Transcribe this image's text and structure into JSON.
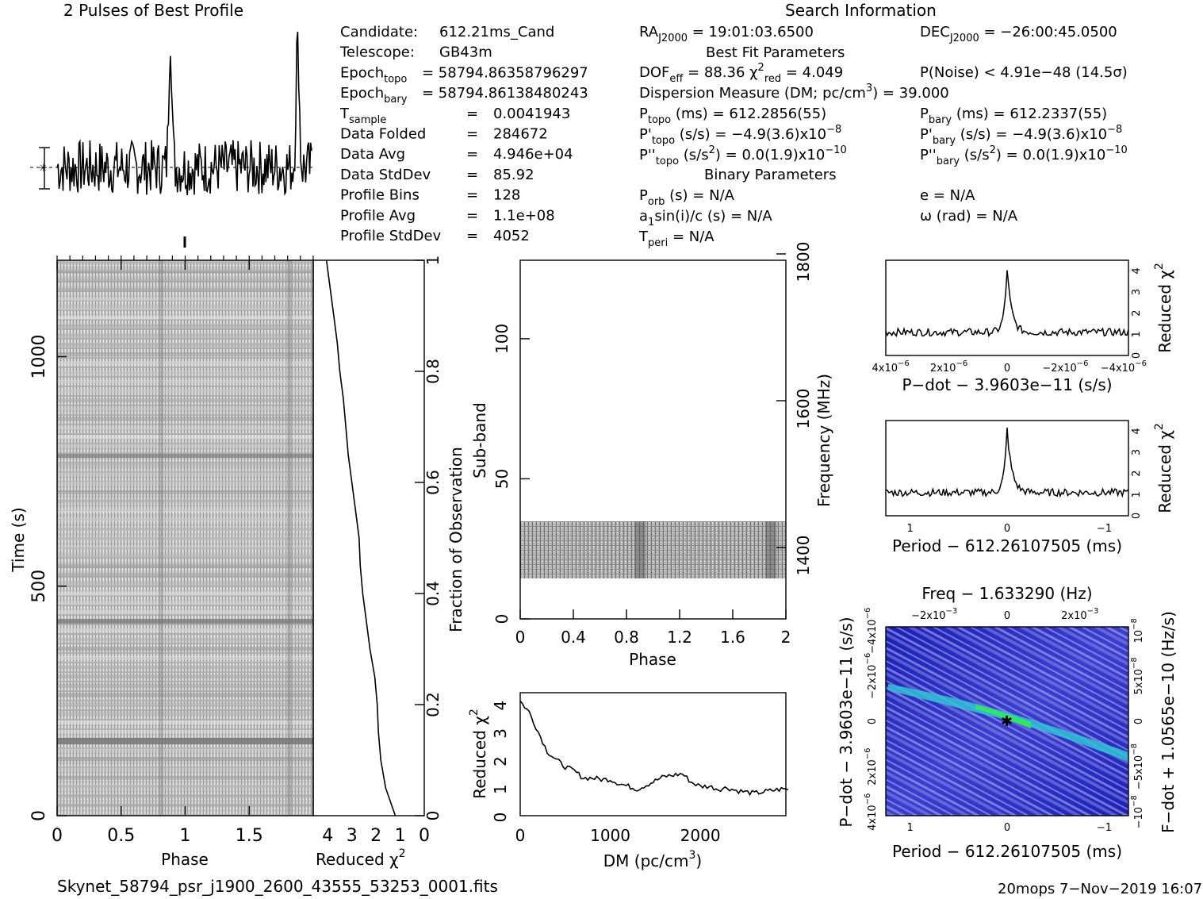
{
  "header": {
    "profile_title": "2 Pulses of Best Profile",
    "search_title": "Search Information",
    "best_fit_title": "Best Fit Parameters",
    "binary_title": "Binary Parameters"
  },
  "info_left": [
    {
      "label": "Candidate:",
      "value": "612.21ms_Cand"
    },
    {
      "label": "Telescope:",
      "value": "GB43m"
    },
    {
      "label": "Epoch_topo",
      "value": "= 58794.86358796297"
    },
    {
      "label": "Epoch_bary",
      "value": "= 58794.86138480243"
    },
    {
      "label": "T_sample",
      "value": "0.0041943"
    },
    {
      "label": "Data Folded",
      "value": "284672"
    },
    {
      "label": "Data Avg",
      "value": "4.946e+04"
    },
    {
      "label": "Data StdDev",
      "value": "85.92"
    },
    {
      "label": "Profile Bins",
      "value": "128"
    },
    {
      "label": "Profile Avg",
      "value": "1.1e+08"
    },
    {
      "label": "Profile StdDev",
      "value": "4052"
    }
  ],
  "search_info": {
    "ra": "19:01:03.6500",
    "dec": "−26:00:45.0500",
    "dof_eff": "88.36",
    "chi2_red": "4.049",
    "p_noise": "P(Noise) < 4.91e−48   (14.5σ)",
    "dm_line": "Dispersion Measure (DM; pc/cm",
    "dm_value": ") = 39.000",
    "p_topo": "612.2856(55)",
    "p_bary": "612.2337(55)",
    "pd_topo": "−4.9(3.6)x10",
    "pd_topo_exp": "−8",
    "pd_bary": "−4.9(3.6)x10",
    "pd_bary_exp": "−8",
    "pdd_topo": "0.0(1.9)x10",
    "pdd_topo_exp": "−10",
    "pdd_bary": "0.0(1.9)x10",
    "pdd_bary_exp": "−10",
    "p_orb": "= N/A",
    "a1sini": "= N/A",
    "t_peri": "= N/A",
    "ecc": "e = N/A",
    "omega": "ω (rad) = N/A"
  },
  "footer": {
    "filename": "Skynet_58794_psr_j1900_2600_43555_53253_0001.fits",
    "stamp": "20mops  7−Nov−2019 16:07"
  },
  "chart_data": [
    {
      "type": "line",
      "title": "2 Pulses of Best Profile",
      "x_range": [
        0,
        2
      ],
      "peaks_phase": [
        0.89,
        1.89
      ],
      "note_values": "two pulses, each peak at phase ~0.89 and ~1.89"
    },
    {
      "type": "heatmap",
      "name": "time-phase",
      "xlabel": "Phase",
      "ylabel": "Time (s)",
      "xlim": [
        0,
        2
      ],
      "ylim": [
        0,
        1200
      ],
      "x_ticks": [
        "0",
        "0.5",
        "1",
        "1.5"
      ],
      "y_ticks": [
        "0",
        "500",
        "1000"
      ]
    },
    {
      "type": "line",
      "name": "chi2-vs-time",
      "xlabel": "Reduced χ",
      "ylabel": "Fraction of Observation",
      "x_ticks": [
        "4",
        "3",
        "2",
        "1",
        "0"
      ],
      "y_ticks": [
        "0",
        "0.2",
        "0.4",
        "0.6",
        "0.8",
        "1"
      ],
      "fraction": [
        0,
        0.05,
        0.1,
        0.15,
        0.2,
        0.25,
        0.3,
        0.35,
        0.4,
        0.45,
        0.5,
        0.55,
        0.6,
        0.65,
        0.7,
        0.75,
        0.8,
        0.85,
        0.9,
        0.95,
        1.0
      ],
      "chi2": [
        1.2,
        1.6,
        1.8,
        1.9,
        1.95,
        2.05,
        2.25,
        2.4,
        2.55,
        2.65,
        2.7,
        2.85,
        3.0,
        3.15,
        3.25,
        3.35,
        3.5,
        3.6,
        3.75,
        3.9,
        4.05
      ]
    },
    {
      "type": "heatmap",
      "name": "subband-phase",
      "xlabel": "Phase",
      "ylabel": "Sub-band",
      "ylabel_right": "Frequency (MHz)",
      "xlim": [
        0,
        2
      ],
      "ylim": [
        0,
        128
      ],
      "x_ticks": [
        "0",
        "0.4",
        "0.8",
        "1.2",
        "1.6",
        "2"
      ],
      "y_ticks": [
        "0",
        "50",
        "100"
      ],
      "y_ticks_right": [
        "1400",
        "1600",
        "1800"
      ],
      "active_subbands": [
        14,
        35
      ]
    },
    {
      "type": "line",
      "name": "chi2-vs-dm",
      "xlabel": "DM (pc/cm",
      "ylabel": "Reduced χ",
      "x_ticks": [
        "0",
        "1000",
        "2000"
      ],
      "y_ticks": [
        "0",
        "1",
        "2",
        "3",
        "4"
      ],
      "x": [
        0,
        100,
        200,
        300,
        400,
        500,
        600,
        700,
        800,
        900,
        1000,
        1100,
        1200,
        1300,
        1400,
        1500,
        1600,
        1700,
        1800,
        1900,
        2000,
        2100,
        2200,
        2300,
        2400,
        2500,
        2600,
        2700,
        2800,
        2900
      ],
      "y": [
        4.1,
        3.7,
        3.0,
        2.3,
        2.0,
        1.75,
        1.6,
        1.35,
        1.35,
        1.3,
        1.3,
        1.15,
        1.05,
        0.95,
        1.1,
        1.25,
        1.4,
        1.45,
        1.5,
        1.2,
        1.05,
        1.05,
        0.95,
        1.0,
        0.9,
        0.85,
        0.8,
        0.85,
        0.9,
        0.95
      ]
    },
    {
      "type": "line",
      "name": "chi2-vs-pdot",
      "xlabel": "P−dot − 3.9603e−11 (s/s)",
      "ylabel": "Reduced χ",
      "x_ticks": [
        "4x10",
        "2x10",
        "0",
        "−2x10",
        "−4x10"
      ],
      "x_tick_exp": "−6",
      "y_ticks": [
        "0",
        "1",
        "2",
        "3",
        "4"
      ],
      "peak": 4.1,
      "baseline": 1.1
    },
    {
      "type": "line",
      "name": "chi2-vs-period",
      "xlabel": "Period − 612.26107505 (ms)",
      "ylabel": "Reduced χ",
      "x_ticks": [
        "1",
        "0",
        "−1"
      ],
      "y_ticks": [
        "0",
        "1",
        "2",
        "3",
        "4"
      ],
      "peak": 4.1,
      "baseline": 1.1
    },
    {
      "type": "heatmap",
      "name": "p-pdot",
      "title": "Freq − 1.633290 (Hz)",
      "xlabel": "Period − 612.26107505 (ms)",
      "ylabel": "P−dot − 3.9603e−11 (s/s)",
      "ylabel_right": "F−dot + 1.0565e−10 (Hz/s)",
      "x_ticks": [
        "1",
        "0",
        "−1"
      ],
      "top_ticks": [
        "−2x10",
        "0",
        "2x10"
      ],
      "top_tick_exp": "−3",
      "left_ticks": [
        "4x10",
        "2x10",
        "0",
        "−2x10",
        "−4x10"
      ],
      "left_tick_exp": "−6",
      "right_ticks": [
        "−10",
        "−5x10",
        "0",
        "5x10",
        "10"
      ],
      "right_tick_exp": "−8"
    }
  ]
}
